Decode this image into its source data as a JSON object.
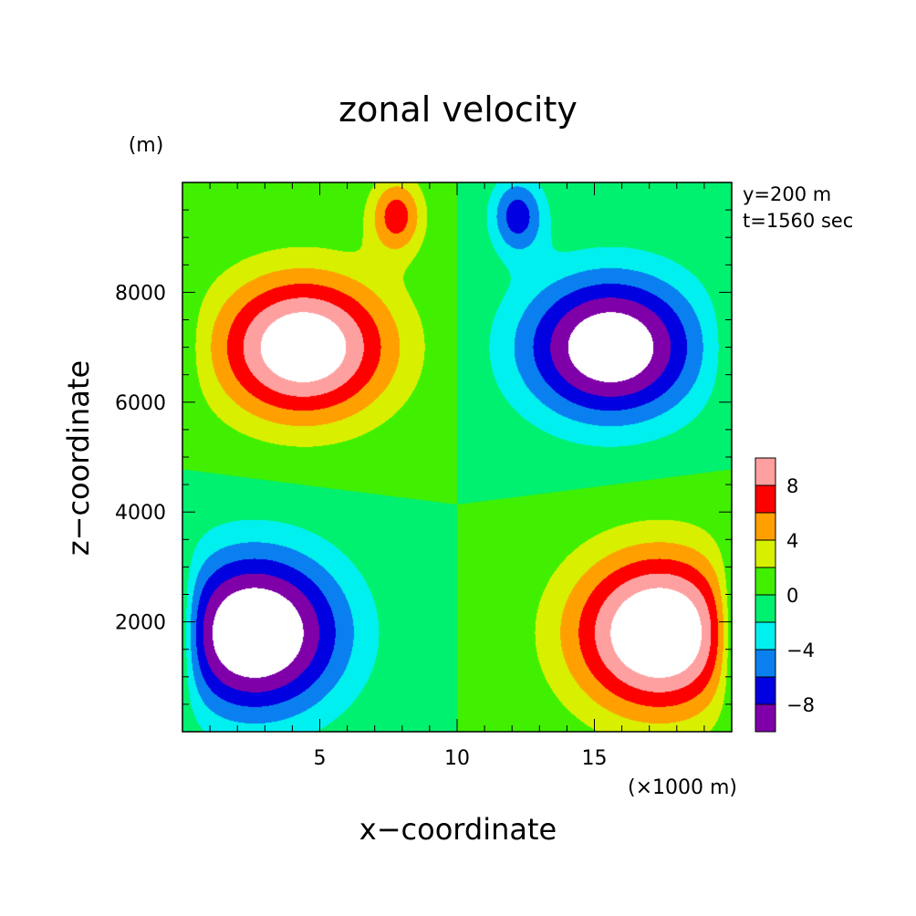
{
  "chart_data": {
    "type": "heatmap",
    "title": "zonal velocity",
    "xlabel": "x−coordinate",
    "ylabel": "z−coordinate",
    "x_unit": "(×1000 m)",
    "y_unit": "(m)",
    "annotations": [
      "y=200 m",
      "t=1560 sec"
    ],
    "xlim": [
      0,
      20
    ],
    "ylim": [
      0,
      10000
    ],
    "x_ticks": [
      {
        "value": 5,
        "label": "5"
      },
      {
        "value": 10,
        "label": "10"
      },
      {
        "value": 15,
        "label": "15"
      }
    ],
    "y_ticks": [
      {
        "value": 2000,
        "label": "2000"
      },
      {
        "value": 4000,
        "label": "4000"
      },
      {
        "value": 6000,
        "label": "6000"
      },
      {
        "value": 8000,
        "label": "8000"
      }
    ],
    "colorbar": {
      "levels": [
        -10,
        -8,
        -6,
        -4,
        -2,
        0,
        2,
        4,
        6,
        8,
        10
      ],
      "colors": [
        "#7f00a8",
        "#0000e0",
        "#0a80f0",
        "#00f0f0",
        "#00f070",
        "#40f000",
        "#d8f000",
        "#ffa000",
        "#ff0000",
        "#ffa0a0"
      ],
      "tick_labels": [
        {
          "value": -8,
          "label": "−8"
        },
        {
          "value": -4,
          "label": "−4"
        },
        {
          "value": 0,
          "label": "0"
        },
        {
          "value": 4,
          "label": "4"
        },
        {
          "value": 8,
          "label": "8"
        }
      ]
    },
    "grid": false,
    "out_of_range_color": "#ffffff"
  }
}
